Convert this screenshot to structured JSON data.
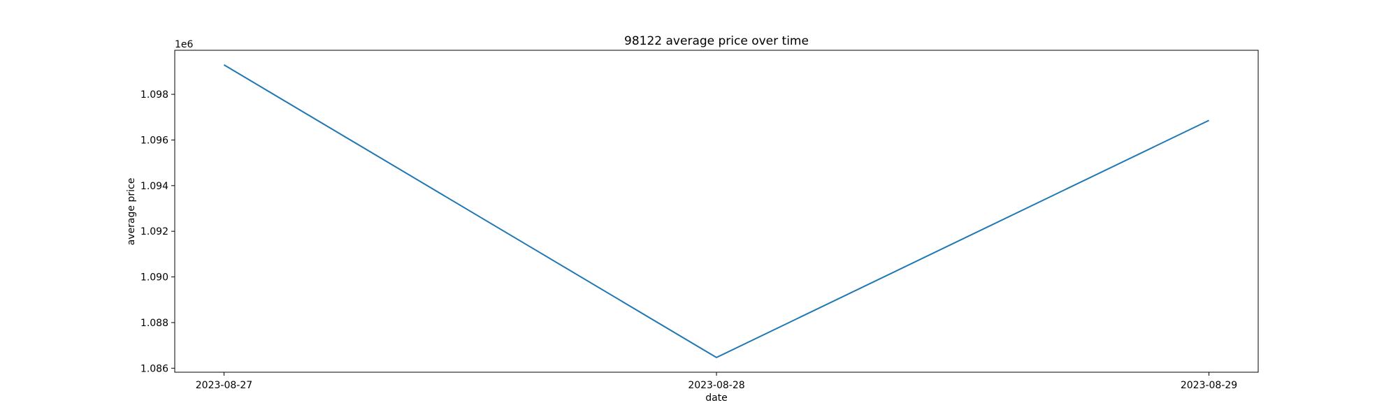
{
  "chart_data": {
    "type": "line",
    "title": "98122 average price over time",
    "xlabel": "date",
    "ylabel": "average price",
    "y_offset_label": "1e6",
    "x": [
      "2023-08-27",
      "2023-08-28",
      "2023-08-29"
    ],
    "series": [
      {
        "values": [
          1099290,
          1086470,
          1096860
        ],
        "color": "#1f77b4"
      }
    ],
    "x_ticks": [
      "2023-08-27",
      "2023-08-28",
      "2023-08-29"
    ],
    "y_ticks": [
      1086000,
      1088000,
      1090000,
      1092000,
      1094000,
      1096000,
      1098000
    ],
    "y_tick_labels": [
      "1.086",
      "1.088",
      "1.090",
      "1.092",
      "1.094",
      "1.096",
      "1.098"
    ],
    "ylim": [
      1085825,
      1099930
    ],
    "grid": false,
    "legend": "none"
  }
}
